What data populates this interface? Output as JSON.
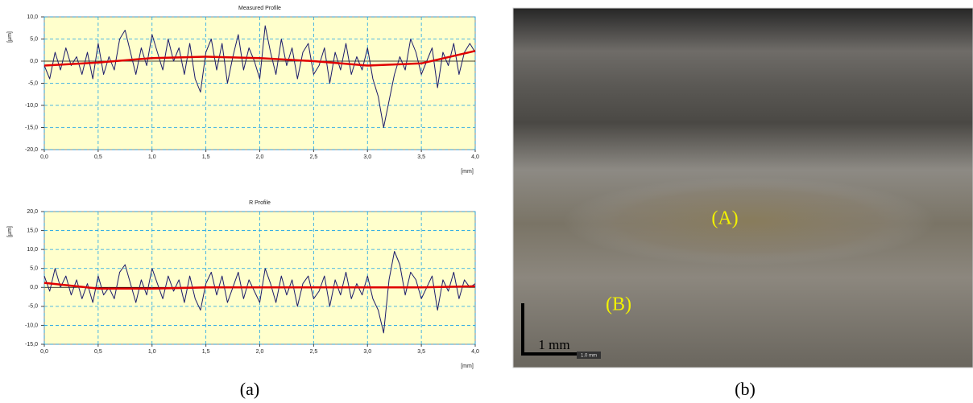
{
  "chart_data": [
    {
      "type": "line",
      "title": "Measured Profile",
      "ylabel": "[µm]",
      "xlabel": "[mm]",
      "xlim": [
        0,
        4
      ],
      "ylim": [
        -20,
        10
      ],
      "xticks": [
        {
          "value": 0,
          "label": "0,0"
        },
        {
          "value": 0.5,
          "label": "0,5"
        },
        {
          "value": 1,
          "label": "1,0"
        },
        {
          "value": 1.5,
          "label": "1,5"
        },
        {
          "value": 2,
          "label": "2,0"
        },
        {
          "value": 2.5,
          "label": "2,5"
        },
        {
          "value": 3,
          "label": "3,0"
        },
        {
          "value": 3.5,
          "label": "3,5"
        },
        {
          "value": 4,
          "label": "4,0"
        }
      ],
      "yticks": [
        {
          "value": -20,
          "label": "-20,0"
        },
        {
          "value": -15,
          "label": "-15,0"
        },
        {
          "value": -10,
          "label": "-10,0"
        },
        {
          "value": -5,
          "label": "-5,0"
        },
        {
          "value": 0,
          "label": "0,0"
        },
        {
          "value": 5,
          "label": "5,0"
        },
        {
          "value": 10,
          "label": "10,0"
        }
      ],
      "grid": true,
      "background": "#ffffcc",
      "series": [
        {
          "color": "#1c1c6b",
          "x": [
            0,
            0.05,
            0.1,
            0.15,
            0.2,
            0.25,
            0.3,
            0.35,
            0.4,
            0.45,
            0.5,
            0.55,
            0.6,
            0.65,
            0.7,
            0.75,
            0.8,
            0.85,
            0.9,
            0.95,
            1,
            1.05,
            1.1,
            1.15,
            1.2,
            1.25,
            1.3,
            1.35,
            1.4,
            1.45,
            1.5,
            1.55,
            1.6,
            1.65,
            1.7,
            1.75,
            1.8,
            1.85,
            1.9,
            1.95,
            2,
            2.05,
            2.1,
            2.15,
            2.2,
            2.25,
            2.3,
            2.35,
            2.4,
            2.45,
            2.5,
            2.55,
            2.6,
            2.65,
            2.7,
            2.75,
            2.8,
            2.85,
            2.9,
            2.95,
            3,
            3.05,
            3.1,
            3.15,
            3.2,
            3.25,
            3.3,
            3.35,
            3.4,
            3.45,
            3.5,
            3.55,
            3.6,
            3.65,
            3.7,
            3.75,
            3.8,
            3.85,
            3.9,
            3.95,
            4
          ],
          "values": [
            -1,
            -4,
            2,
            -2,
            3,
            -1,
            1,
            -3,
            2,
            -4,
            4,
            -3,
            1,
            -2,
            5,
            7,
            2,
            -3,
            3,
            -1,
            6,
            2,
            -2,
            5,
            0,
            3,
            -3,
            4,
            -4,
            -7,
            2,
            5,
            -2,
            4,
            -5,
            1,
            6,
            -2,
            3,
            0,
            -4,
            8,
            2,
            -3,
            5,
            -1,
            3,
            -4,
            2,
            4,
            -3,
            -1,
            3,
            -5,
            2,
            -2,
            4,
            -3,
            1,
            -2,
            3,
            -4,
            -8,
            -15,
            -9,
            -3,
            1,
            -2,
            5,
            2,
            -3,
            0,
            3,
            -6,
            2,
            -1,
            4,
            -3,
            2,
            4,
            2
          ]
        },
        {
          "color": "#e00000",
          "x": [
            0,
            0.5,
            1,
            1.5,
            2,
            2.5,
            3,
            3.5,
            4
          ],
          "values": [
            -1,
            -0.3,
            0.7,
            1,
            0.7,
            0,
            -1,
            -0.5,
            2.3
          ]
        }
      ]
    },
    {
      "type": "line",
      "title": "R Profile",
      "ylabel": "[µm]",
      "xlabel": "[mm]",
      "xlim": [
        0,
        4
      ],
      "ylim": [
        -15,
        20
      ],
      "xticks": [
        {
          "value": 0,
          "label": "0,0"
        },
        {
          "value": 0.5,
          "label": "0,5"
        },
        {
          "value": 1,
          "label": "1,0"
        },
        {
          "value": 1.5,
          "label": "1,5"
        },
        {
          "value": 2,
          "label": "2,0"
        },
        {
          "value": 2.5,
          "label": "2,5"
        },
        {
          "value": 3,
          "label": "3,0"
        },
        {
          "value": 3.5,
          "label": "3,5"
        },
        {
          "value": 4,
          "label": "4,0"
        }
      ],
      "yticks": [
        {
          "value": -15,
          "label": "-15,0"
        },
        {
          "value": -10,
          "label": "-10,0"
        },
        {
          "value": -5,
          "label": "-5,0"
        },
        {
          "value": 0,
          "label": "0,0"
        },
        {
          "value": 5,
          "label": "5,0"
        },
        {
          "value": 10,
          "label": "10,0"
        },
        {
          "value": 15,
          "label": "15,0"
        },
        {
          "value": 20,
          "label": "20,0"
        }
      ],
      "grid": true,
      "background": "#ffffcc",
      "series": [
        {
          "color": "#1c1c6b",
          "x": [
            0,
            0.05,
            0.1,
            0.15,
            0.2,
            0.25,
            0.3,
            0.35,
            0.4,
            0.45,
            0.5,
            0.55,
            0.6,
            0.65,
            0.7,
            0.75,
            0.8,
            0.85,
            0.9,
            0.95,
            1,
            1.05,
            1.1,
            1.15,
            1.2,
            1.25,
            1.3,
            1.35,
            1.4,
            1.45,
            1.5,
            1.55,
            1.6,
            1.65,
            1.7,
            1.75,
            1.8,
            1.85,
            1.9,
            1.95,
            2,
            2.05,
            2.1,
            2.15,
            2.2,
            2.25,
            2.3,
            2.35,
            2.4,
            2.45,
            2.5,
            2.55,
            2.6,
            2.65,
            2.7,
            2.75,
            2.8,
            2.85,
            2.9,
            2.95,
            3,
            3.05,
            3.1,
            3.15,
            3.2,
            3.25,
            3.3,
            3.35,
            3.4,
            3.45,
            3.5,
            3.55,
            3.6,
            3.65,
            3.7,
            3.75,
            3.8,
            3.85,
            3.9,
            3.95,
            4
          ],
          "values": [
            3,
            -1,
            5,
            0,
            3,
            -2,
            2,
            -3,
            1,
            -4,
            3,
            -2,
            0,
            -3,
            4,
            6,
            1,
            -4,
            2,
            -2,
            5,
            1,
            -3,
            3,
            -1,
            2,
            -4,
            3,
            -3,
            -6,
            1,
            4,
            -2,
            3,
            -4,
            0,
            4,
            -3,
            2,
            -1,
            -4,
            5,
            1,
            -4,
            3,
            -2,
            2,
            -5,
            1,
            3,
            -3,
            -1,
            3,
            -5,
            2,
            -2,
            4,
            -3,
            1,
            -2,
            3,
            -3,
            -6,
            -12,
            2,
            9.5,
            6,
            -2,
            4,
            2,
            -3,
            0,
            3,
            -6,
            2,
            -1,
            4,
            -3,
            2,
            0,
            1
          ]
        },
        {
          "color": "#e00000",
          "x": [
            0,
            0.5,
            1,
            1.5,
            2,
            2.5,
            3,
            3.5,
            4
          ],
          "values": [
            1.2,
            -0.3,
            -0.3,
            0,
            0,
            0,
            0,
            0,
            0.3
          ]
        }
      ]
    }
  ],
  "captions": [
    "(a)",
    "(b)"
  ],
  "photo": {
    "labels": [
      "(A)",
      "(B)"
    ],
    "scale_bar": "1 mm",
    "scale_note": "1.0 mm"
  }
}
